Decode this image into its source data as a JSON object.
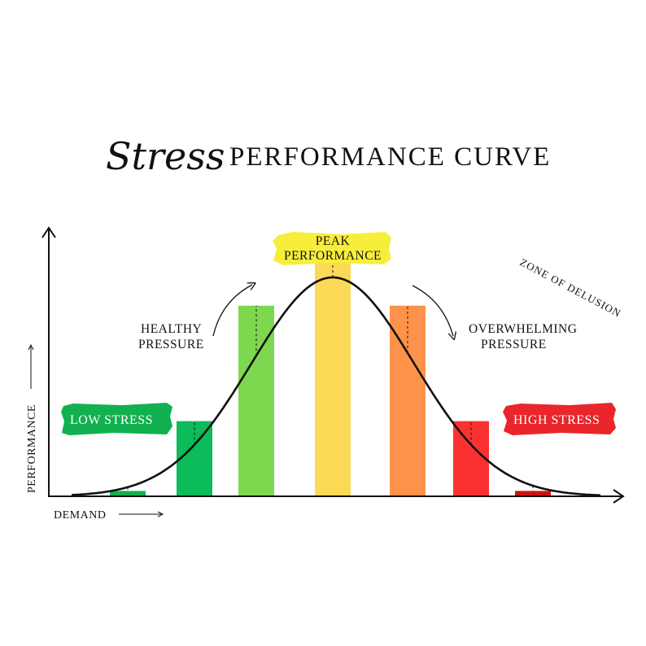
{
  "title": {
    "script_word": "Stress",
    "main_words": "PERFORMANCE CURVE"
  },
  "axes": {
    "y_label": "PERFORMANCE",
    "x_label": "DEMAND"
  },
  "labels": {
    "low_stress": "LOW STRESS",
    "healthy_line1": "HEALTHY",
    "healthy_line2": "PRESSURE",
    "peak_line1": "PEAK",
    "peak_line2": "PERFORMANCE",
    "zone_of_delusion": "ZONE OF DELUSION",
    "overwhelming_line1": "OVERWHELMING",
    "overwhelming_line2": "PRESSURE",
    "high_stress": "HIGH STRESS"
  },
  "colors": {
    "low_stress_badge": "#12b04f",
    "peak_badge": "#f7ee3c",
    "high_stress_badge": "#e8262b",
    "curve": "#111111"
  },
  "chart_data": {
    "type": "bar",
    "values": [
      2,
      28,
      71,
      88,
      71,
      28,
      2
    ],
    "colors": [
      "#12b04f",
      "#0cbb59",
      "#7dd84f",
      "#fcd956",
      "#fd924a",
      "#fb3131",
      "#cc1111"
    ],
    "ylim": [
      0,
      100
    ]
  }
}
